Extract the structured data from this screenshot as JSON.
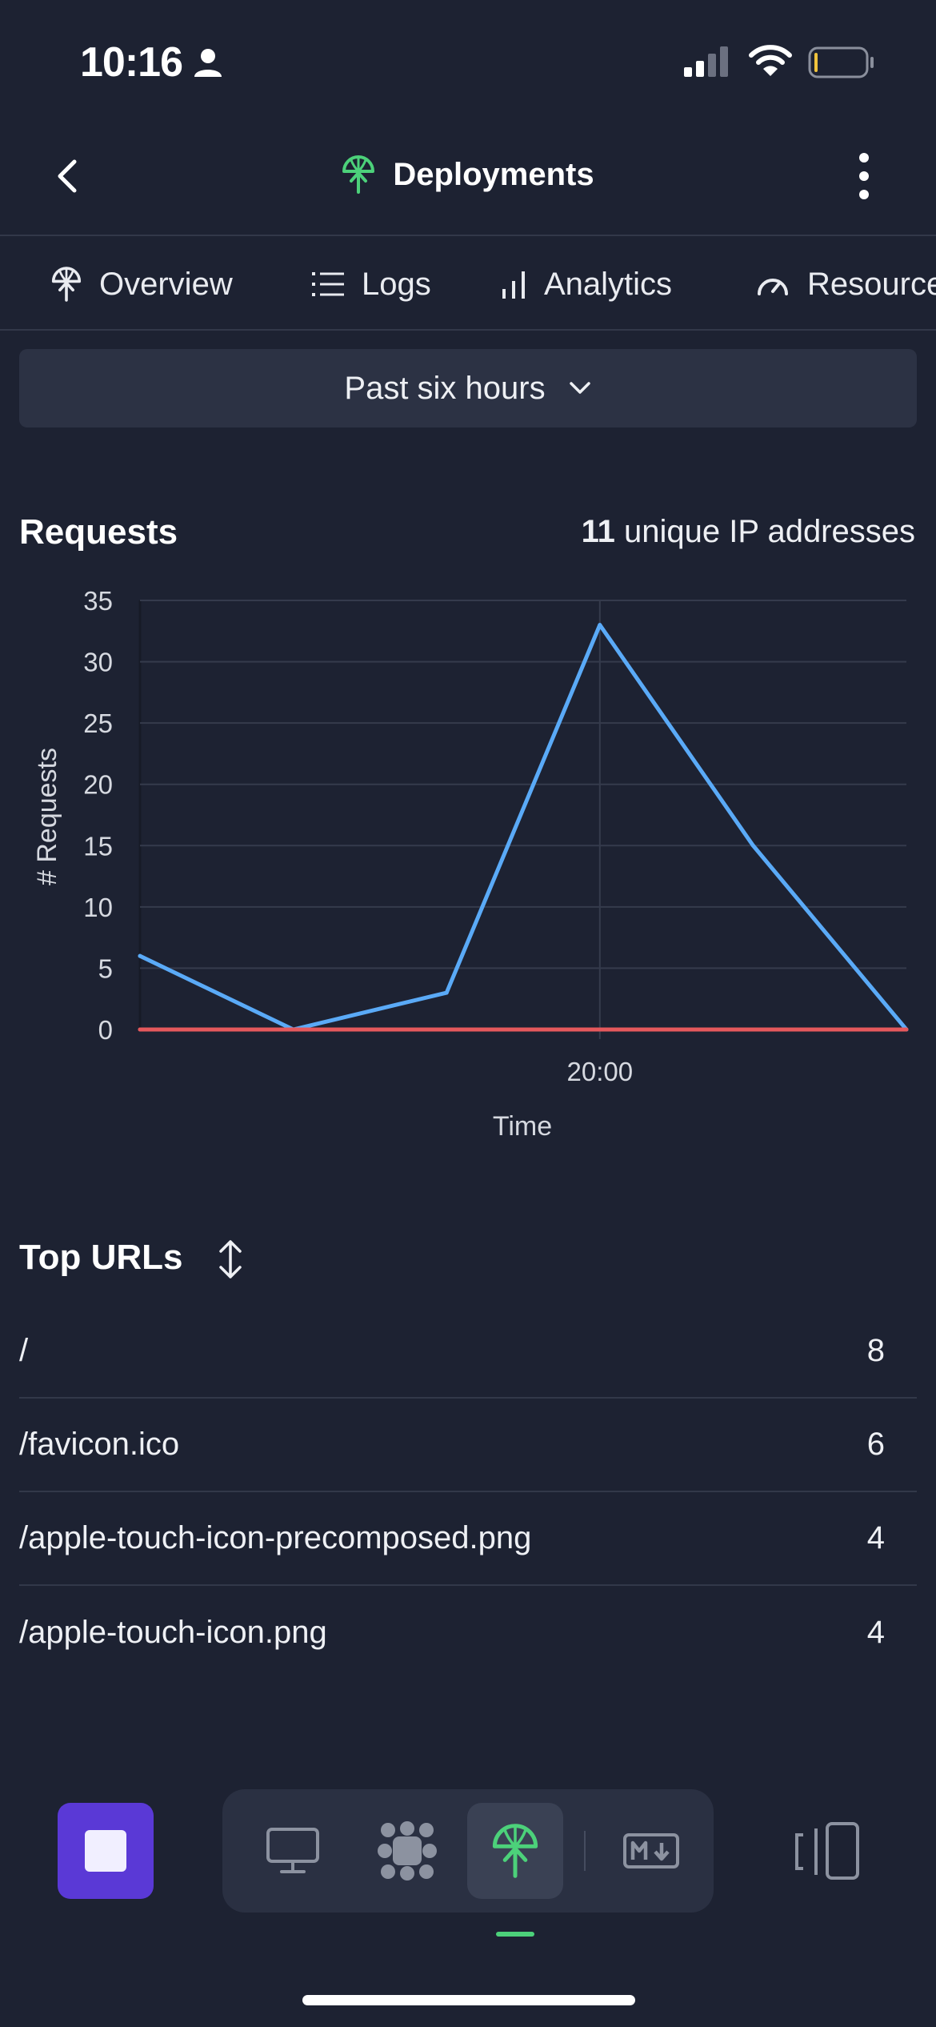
{
  "status_bar": {
    "time": "10:16"
  },
  "header": {
    "title": "Deployments",
    "back_icon": "chevron-left-icon",
    "menu_icon": "more-vertical-icon",
    "title_icon": "deploy-icon"
  },
  "tabs": [
    {
      "label": "Overview",
      "icon": "deploy-icon"
    },
    {
      "label": "Logs",
      "icon": "list-icon"
    },
    {
      "label": "Analytics",
      "icon": "bar-chart-icon",
      "active": true
    },
    {
      "label": "Resources",
      "icon": "gauge-icon"
    }
  ],
  "range_select": {
    "value": "Past six hours"
  },
  "requests": {
    "title": "Requests",
    "unique_count": "11",
    "unique_label": "unique IP addresses"
  },
  "chart_data": {
    "type": "line",
    "xlabel": "Time",
    "ylabel": "# Requests",
    "ylim": [
      0,
      35
    ],
    "yticks": [
      0,
      5,
      10,
      15,
      20,
      25,
      30,
      35
    ],
    "xticks": [
      {
        "x": 3,
        "label": "20:00"
      }
    ],
    "grid": true,
    "series": [
      {
        "color": "#5aaaf7",
        "x": [
          0,
          1,
          2,
          3,
          4,
          5
        ],
        "values": [
          6,
          0,
          3,
          33,
          15,
          0
        ]
      },
      {
        "color": "#e5585c",
        "x": [
          0,
          5
        ],
        "values": [
          0,
          0
        ]
      }
    ]
  },
  "top_urls": {
    "title": "Top URLs",
    "sort_icon": "sort-icon",
    "rows": [
      {
        "url": "/",
        "count": "8"
      },
      {
        "url": "/favicon.ico",
        "count": "6"
      },
      {
        "url": "/apple-touch-icon-precomposed.png",
        "count": "4"
      },
      {
        "url": "/apple-touch-icon.png",
        "count": "4"
      }
    ]
  },
  "dock": {
    "items": [
      "monitor-icon",
      "grid-icon",
      "deploy-icon",
      "markdown-icon"
    ],
    "active": "deploy-icon"
  },
  "colors": {
    "accent": "#4cd17a",
    "stop_button": "#5a39d6",
    "background": "#1d2232"
  }
}
